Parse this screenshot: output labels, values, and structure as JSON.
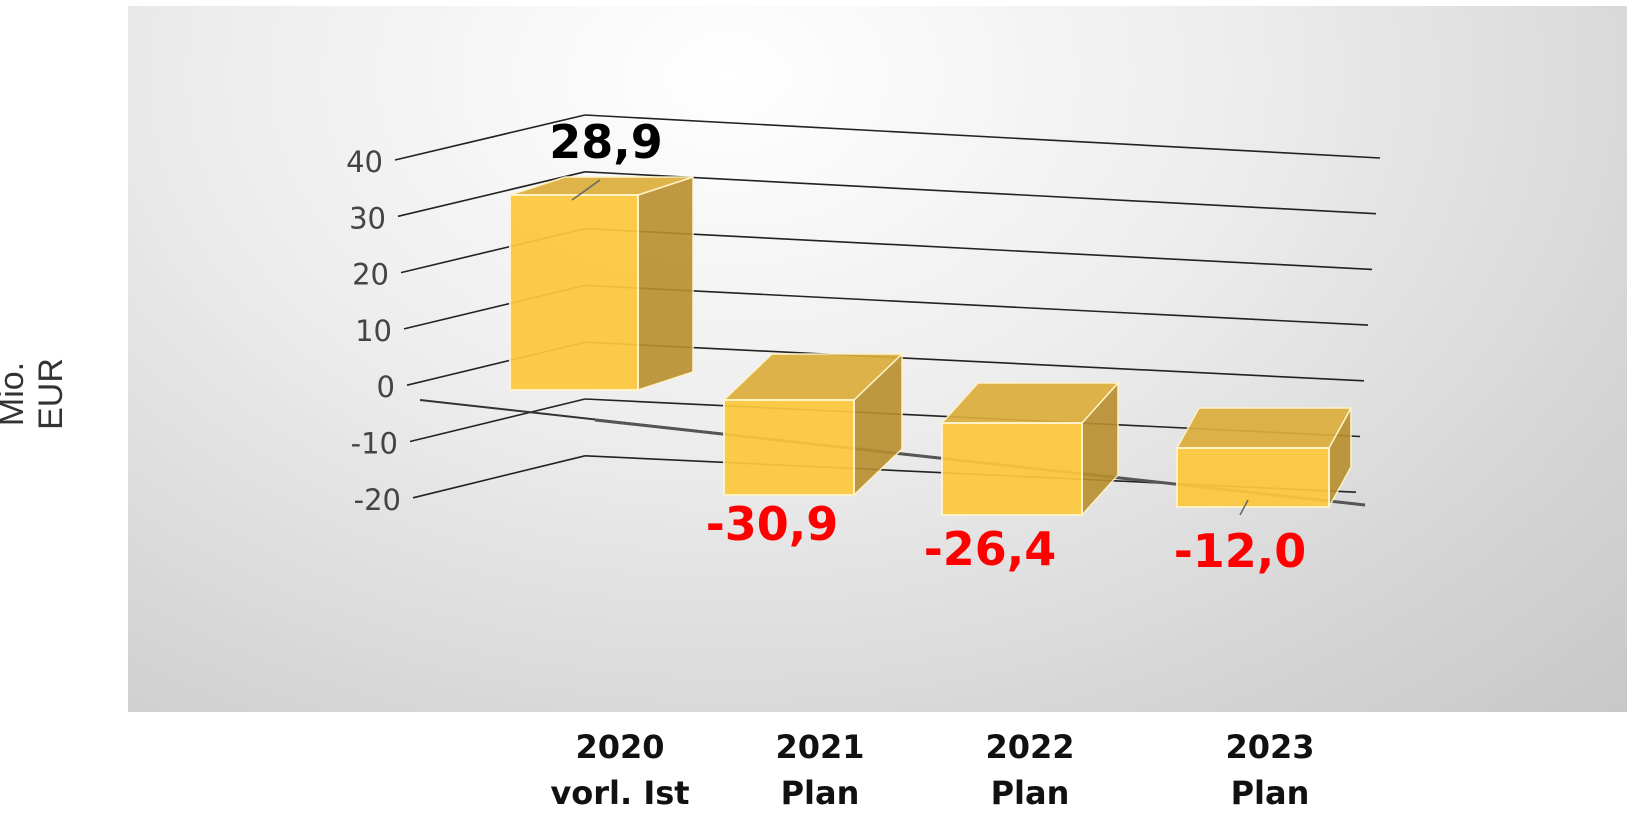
{
  "chart_data": {
    "type": "bar",
    "ylabel": "Mio. EUR",
    "ylim": [
      -20,
      40
    ],
    "yticks": [
      40,
      30,
      20,
      10,
      0,
      -10,
      -20
    ],
    "categories": [
      {
        "year": "2020",
        "sub": "vorl. Ist"
      },
      {
        "year": "2021",
        "sub": "Plan"
      },
      {
        "year": "2022",
        "sub": "Plan"
      },
      {
        "year": "2023",
        "sub": "Plan"
      }
    ],
    "values": [
      28.9,
      -30.9,
      -26.4,
      -12.0
    ],
    "data_labels": [
      "28,9",
      "-30,9",
      "-26,4",
      "-12,0"
    ],
    "colors": {
      "bar_front": "#fcc83c",
      "bar_top": "#dcae3b",
      "bar_side": "#b88f2e",
      "positive_label": "#000000",
      "negative_label": "#ff0000"
    },
    "grid": true,
    "three_d": true
  }
}
